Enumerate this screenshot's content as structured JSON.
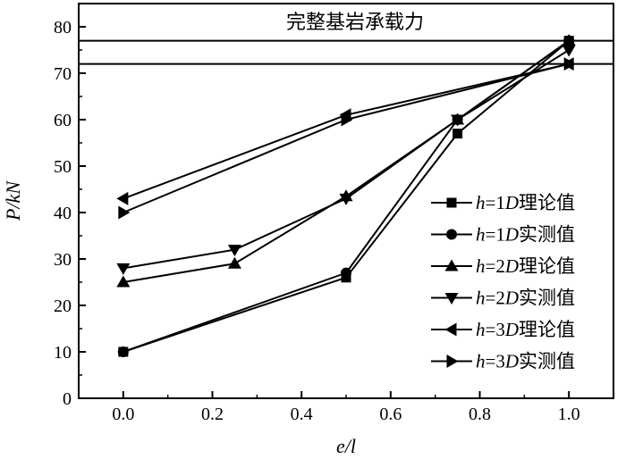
{
  "chart_data": {
    "type": "line",
    "title": "",
    "xlabel": "e/l",
    "ylabel": "P/kN",
    "xlim": [
      -0.1,
      1.1
    ],
    "ylim": [
      0,
      85
    ],
    "x_ticks": [
      0.0,
      0.2,
      0.4,
      0.6,
      0.8,
      1.0
    ],
    "x_tick_labels": [
      "0.0",
      "0.2",
      "0.4",
      "0.6",
      "0.8",
      "1.0"
    ],
    "y_ticks": [
      0,
      10,
      20,
      30,
      40,
      50,
      60,
      70,
      80
    ],
    "y_tick_labels": [
      "0",
      "10",
      "20",
      "30",
      "40",
      "50",
      "60",
      "70",
      "80"
    ],
    "grid": false,
    "legend_position": "right",
    "reference_lines": [
      {
        "y": 77
      },
      {
        "y": 72
      }
    ],
    "annotation": "完整基岩承载力",
    "series": [
      {
        "name": "h=1D理论值",
        "marker": "square",
        "x": [
          0,
          0.5,
          0.75,
          1.0
        ],
        "y": [
          10,
          26,
          57,
          77
        ]
      },
      {
        "name": "h=1D实测值",
        "marker": "circle",
        "x": [
          0,
          0.5,
          0.75,
          1.0
        ],
        "y": [
          10,
          27,
          60,
          77
        ]
      },
      {
        "name": "h=2D理论值",
        "marker": "triangle-up",
        "x": [
          0,
          0.25,
          0.5,
          0.75,
          1.0
        ],
        "y": [
          25,
          29,
          43.5,
          60,
          77
        ]
      },
      {
        "name": "h=2D实测值",
        "marker": "triangle-down",
        "x": [
          0,
          0.25,
          0.5,
          0.75,
          1.0
        ],
        "y": [
          28,
          32,
          43,
          60,
          75
        ]
      },
      {
        "name": "h=3D理论值",
        "marker": "triangle-left",
        "x": [
          0,
          0.5,
          1.0
        ],
        "y": [
          43,
          61,
          72
        ]
      },
      {
        "name": "h=3D实测值",
        "marker": "triangle-right",
        "x": [
          0,
          0.5,
          1.0
        ],
        "y": [
          40,
          60,
          72
        ]
      }
    ]
  }
}
